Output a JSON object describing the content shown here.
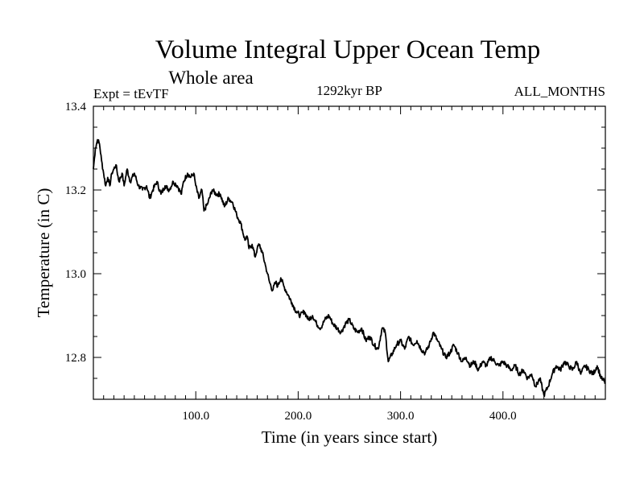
{
  "chart_data": {
    "type": "line",
    "title": "Volume Integral Upper Ocean Temp",
    "subtitle": "Whole area",
    "info_left": "Expt = tEvTF",
    "info_center": "1292kyr BP",
    "info_right": "ALL_MONTHS",
    "xlabel": "Time (in years since start)",
    "ylabel": "Temperature (in C)",
    "xlim": [
      0,
      500
    ],
    "ylim": [
      12.7,
      13.4
    ],
    "x_ticks": [
      100,
      200,
      300,
      400
    ],
    "x_tick_labels": [
      "100.0",
      "200.0",
      "300.0",
      "400.0"
    ],
    "y_ticks": [
      12.8,
      13.0,
      13.2,
      13.4
    ],
    "y_tick_labels": [
      "12.8",
      "13.0",
      "13.2",
      "13.4"
    ],
    "grid": false,
    "line_color": "#000000",
    "series": [
      {
        "name": "Temperature",
        "x": [
          0,
          2,
          4,
          6,
          8,
          10,
          12,
          14,
          16,
          18,
          20,
          22,
          25,
          28,
          30,
          33,
          36,
          40,
          44,
          48,
          52,
          55,
          58,
          62,
          66,
          70,
          74,
          78,
          82,
          86,
          88,
          92,
          95,
          98,
          100,
          103,
          106,
          108,
          112,
          116,
          120,
          124,
          128,
          132,
          136,
          140,
          144,
          148,
          150,
          152,
          155,
          158,
          160,
          162,
          165,
          168,
          170,
          172,
          175,
          178,
          180,
          183,
          186,
          190,
          194,
          198,
          202,
          206,
          210,
          214,
          218,
          222,
          226,
          230,
          234,
          238,
          242,
          246,
          250,
          254,
          258,
          262,
          266,
          270,
          274,
          278,
          282,
          285,
          288,
          292,
          296,
          300,
          304,
          308,
          312,
          316,
          320,
          324,
          328,
          332,
          336,
          340,
          344,
          348,
          352,
          356,
          360,
          364,
          368,
          372,
          376,
          380,
          384,
          388,
          392,
          396,
          400,
          404,
          408,
          412,
          416,
          420,
          424,
          428,
          432,
          436,
          440,
          444,
          448,
          452,
          456,
          460,
          464,
          468,
          472,
          476,
          480,
          484,
          488,
          492,
          496,
          500
        ],
        "y": [
          13.25,
          13.3,
          13.32,
          13.31,
          13.27,
          13.24,
          13.21,
          13.23,
          13.21,
          13.24,
          13.25,
          13.26,
          13.22,
          13.24,
          13.21,
          13.25,
          13.22,
          13.24,
          13.21,
          13.2,
          13.21,
          13.18,
          13.2,
          13.22,
          13.19,
          13.21,
          13.2,
          13.22,
          13.21,
          13.19,
          13.22,
          13.24,
          13.23,
          13.24,
          13.21,
          13.18,
          13.2,
          13.15,
          13.17,
          13.2,
          13.19,
          13.19,
          13.16,
          13.18,
          13.17,
          13.14,
          13.12,
          13.08,
          13.09,
          13.06,
          13.07,
          13.04,
          13.06,
          13.07,
          13.05,
          13.02,
          13.0,
          12.98,
          12.96,
          12.98,
          12.97,
          12.99,
          12.97,
          12.95,
          12.93,
          12.91,
          12.9,
          12.91,
          12.89,
          12.9,
          12.88,
          12.87,
          12.89,
          12.9,
          12.88,
          12.87,
          12.86,
          12.88,
          12.89,
          12.87,
          12.86,
          12.87,
          12.84,
          12.85,
          12.83,
          12.82,
          12.87,
          12.86,
          12.79,
          12.81,
          12.83,
          12.84,
          12.82,
          12.85,
          12.83,
          12.84,
          12.82,
          12.81,
          12.83,
          12.86,
          12.84,
          12.82,
          12.8,
          12.81,
          12.83,
          12.81,
          12.79,
          12.8,
          12.78,
          12.79,
          12.77,
          12.79,
          12.78,
          12.8,
          12.79,
          12.78,
          12.79,
          12.78,
          12.77,
          12.78,
          12.76,
          12.77,
          12.75,
          12.76,
          12.73,
          12.75,
          12.71,
          12.73,
          12.76,
          12.78,
          12.77,
          12.79,
          12.78,
          12.77,
          12.79,
          12.76,
          12.78,
          12.77,
          12.76,
          12.78,
          12.75,
          12.74
        ]
      }
    ]
  }
}
